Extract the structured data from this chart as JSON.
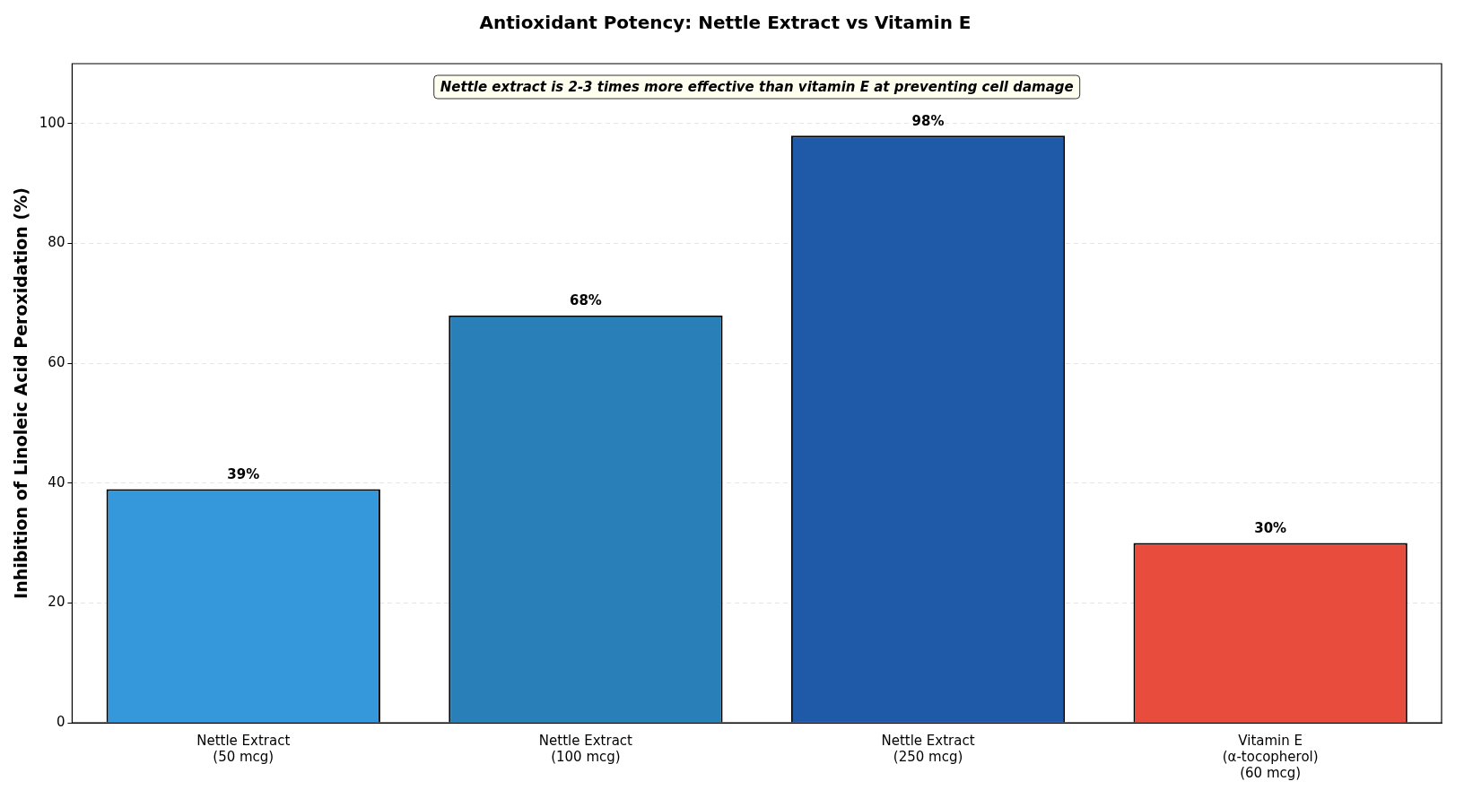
{
  "chart_data": {
    "type": "bar",
    "title": "Antioxidant Potency: Nettle Extract vs Vitamin E",
    "ylabel": "Inhibition of Linoleic Acid Peroxidation (%)",
    "categories": [
      "Nettle Extract\n(50 mcg)",
      "Nettle Extract\n(100 mcg)",
      "Nettle Extract\n(250 mcg)",
      "Vitamin E\n(α-tocopherol)\n(60 mcg)"
    ],
    "values": [
      39,
      68,
      98,
      30
    ],
    "colors": [
      "#3498db",
      "#2980b9",
      "#1f5aa8",
      "#e74c3c"
    ],
    "value_labels": [
      "39%",
      "68%",
      "98%",
      "30%"
    ],
    "annotations": [
      "Nettle extract is 2-3 times more effective than vitamin E at preventing cell damage"
    ],
    "ylim": [
      0,
      110
    ],
    "yticks": [
      0,
      20,
      40,
      60,
      80,
      100
    ],
    "grid": "y",
    "legend": false
  }
}
